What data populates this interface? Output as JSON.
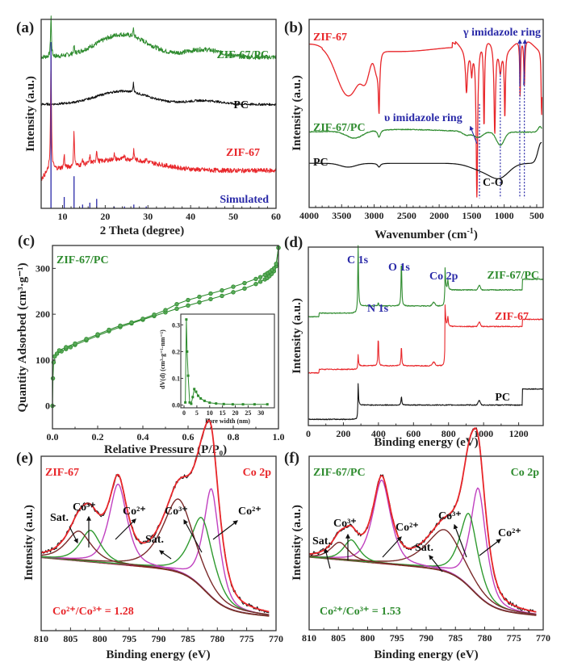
{
  "colors": {
    "green": "#2e8b2e",
    "red": "#e8262a",
    "black": "#111111",
    "blue": "#2a2aa8",
    "magenta": "#c040c0",
    "brown": "#7a2a2a",
    "fitgreen": "#2f9a2f",
    "darkred": "#8b1a1a"
  },
  "chart_data": [
    {
      "panel": "(a)",
      "type": "line",
      "xlabel": "2 Theta (degree)",
      "ylabel": "Intensity (a.u.)",
      "xlim": [
        5,
        60
      ],
      "xticks": [
        10,
        20,
        30,
        40,
        50,
        60
      ],
      "series": [
        {
          "name": "ZIF-67/PC",
          "color": "green",
          "baseline": 0.8,
          "broad": [
            {
              "x": 24,
              "h": 0.12,
              "w": 6
            },
            {
              "x": 43,
              "h": 0.04,
              "w": 4
            }
          ],
          "peaks": [
            {
              "x": 7.3,
              "h": 0.22
            },
            {
              "x": 12.7,
              "h": 0.04
            },
            {
              "x": 26.6,
              "h": 0.04
            }
          ],
          "noise": 0.012
        },
        {
          "name": "PC",
          "color": "black",
          "baseline": 0.55,
          "broad": [
            {
              "x": 24,
              "h": 0.07,
              "w": 6
            },
            {
              "x": 43,
              "h": 0.02,
              "w": 4
            }
          ],
          "peaks": [
            {
              "x": 26.6,
              "h": 0.05
            }
          ],
          "noise": 0.006
        },
        {
          "name": "ZIF-67",
          "color": "red",
          "baseline": 0.2,
          "broad": [
            {
              "x": 24,
              "h": 0.06,
              "w": 8
            }
          ],
          "peaks": [
            {
              "x": 7.3,
              "h": 0.62
            },
            {
              "x": 10.4,
              "h": 0.07
            },
            {
              "x": 12.7,
              "h": 0.18
            },
            {
              "x": 14.7,
              "h": 0.03
            },
            {
              "x": 16.4,
              "h": 0.04
            },
            {
              "x": 18.0,
              "h": 0.07
            },
            {
              "x": 22.1,
              "h": 0.03
            },
            {
              "x": 24.5,
              "h": 0.03
            },
            {
              "x": 26.7,
              "h": 0.05
            },
            {
              "x": 29.6,
              "h": 0.02
            }
          ],
          "noise": 0.012
        },
        {
          "name": "Simulated",
          "color": "blue",
          "type": "sticks",
          "sticks": [
            {
              "x": 7.3,
              "h": 0.88
            },
            {
              "x": 10.4,
              "h": 0.06
            },
            {
              "x": 12.7,
              "h": 0.17
            },
            {
              "x": 14.7,
              "h": 0.02
            },
            {
              "x": 16.4,
              "h": 0.03
            },
            {
              "x": 18.0,
              "h": 0.05
            },
            {
              "x": 22.1,
              "h": 0.01
            },
            {
              "x": 24.5,
              "h": 0.01
            },
            {
              "x": 26.7,
              "h": 0.02
            },
            {
              "x": 29.6,
              "h": 0.01
            }
          ]
        }
      ],
      "labels": [
        {
          "text": "ZIF-67/PC",
          "color": "green"
        },
        {
          "text": "PC",
          "color": "black"
        },
        {
          "text": "ZIF-67",
          "color": "red"
        },
        {
          "text": "Simulated",
          "color": "blue"
        }
      ]
    },
    {
      "panel": "(b)",
      "type": "line",
      "xlabel": "Wavenumber (cm⁻¹)",
      "ylabel": "Intensity (a.u.)",
      "xlim": [
        4000,
        400
      ],
      "xticks": [
        4000,
        3500,
        3000,
        2500,
        2000,
        1500,
        1000,
        500
      ],
      "series": [
        {
          "name": "ZIF-67",
          "color": "red"
        },
        {
          "name": "ZIF-67/PC",
          "color": "green"
        },
        {
          "name": "PC",
          "color": "black"
        }
      ],
      "annotations": [
        {
          "text": "γ imidazole ring",
          "color": "blue",
          "x": [
            760,
            690
          ]
        },
        {
          "text": "υ imidazole ring",
          "color": "blue",
          "x": [
            1380
          ]
        },
        {
          "text": "C-O",
          "color": "black",
          "x": [
            1060
          ]
        }
      ]
    },
    {
      "panel": "(c)",
      "type": "line",
      "xlabel": "Relative Pressure (P/P₀)",
      "ylabel": "Quantity Adsorbed (cm³·g⁻¹)",
      "xlim": [
        0,
        1.0
      ],
      "ylim": [
        -50,
        350
      ],
      "xticks": [
        0.0,
        0.2,
        0.4,
        0.6,
        0.8,
        1.0
      ],
      "yticks": [
        0,
        100,
        200,
        300
      ],
      "legend": "ZIF-67/PC",
      "series": [
        {
          "name": "adsorption",
          "x": [
            0.0,
            0.002,
            0.005,
            0.01,
            0.02,
            0.04,
            0.06,
            0.08,
            0.1,
            0.15,
            0.2,
            0.25,
            0.3,
            0.35,
            0.4,
            0.45,
            0.5,
            0.55,
            0.6,
            0.65,
            0.7,
            0.75,
            0.8,
            0.85,
            0.9,
            0.92,
            0.94,
            0.95,
            0.96,
            0.97,
            0.98,
            0.99,
            1.0
          ],
          "y": [
            0,
            60,
            95,
            108,
            114,
            119,
            124,
            128,
            133,
            143,
            153,
            163,
            172,
            180,
            188,
            196,
            204,
            212,
            219,
            226,
            233,
            240,
            248,
            256,
            266,
            271,
            276,
            279,
            283,
            288,
            294,
            305,
            345
          ]
        },
        {
          "name": "desorption",
          "x": [
            1.0,
            0.99,
            0.98,
            0.97,
            0.96,
            0.95,
            0.94,
            0.92,
            0.9,
            0.85,
            0.8,
            0.75,
            0.7,
            0.65,
            0.6,
            0.55,
            0.5,
            0.45,
            0.4,
            0.35,
            0.3,
            0.25,
            0.2,
            0.15,
            0.1,
            0.06,
            0.03
          ],
          "y": [
            345,
            310,
            300,
            296,
            292,
            289,
            286,
            281,
            277,
            268,
            260,
            252,
            245,
            238,
            231,
            222,
            209,
            199,
            190,
            182,
            175,
            166,
            156,
            146,
            136,
            128,
            121
          ]
        }
      ],
      "inset": {
        "xlabel": "Pore width (nm)",
        "ylabel": "dV(d) (cm³·g⁻¹·nm⁻¹)",
        "xlim": [
          0,
          34
        ],
        "ylim": [
          -0.01,
          0.34
        ],
        "xticks": [
          0,
          5,
          10,
          15,
          20,
          25,
          30
        ],
        "yticks": [
          0.0,
          0.1,
          0.2,
          0.3
        ],
        "x": [
          0.5,
          0.9,
          1.2,
          1.6,
          2.2,
          2.8,
          3.4,
          4.0,
          4.7,
          5.5,
          6.5,
          8,
          10,
          12.5,
          15.5,
          19,
          23,
          27.5,
          32.5
        ],
        "y": [
          0.01,
          0.32,
          0.2,
          0.11,
          0.01,
          0.005,
          0.03,
          0.06,
          0.05,
          0.035,
          0.025,
          0.016,
          0.009,
          0.006,
          0.004,
          0.003,
          0.003,
          0.003,
          0.003
        ]
      }
    },
    {
      "panel": "(d)",
      "type": "line",
      "xlabel": "Binding energy (eV)",
      "ylabel": "Intensity (a.u.)",
      "xlim": [
        0,
        1340
      ],
      "xticks": [
        0,
        200,
        400,
        600,
        800,
        1000,
        1200
      ],
      "series": [
        {
          "name": "ZIF-67/PC",
          "color": "green"
        },
        {
          "name": "ZIF-67",
          "color": "red"
        },
        {
          "name": "PC",
          "color": "black"
        }
      ],
      "annotations": [
        {
          "text": "C 1s",
          "x": 284
        },
        {
          "text": "N 1s",
          "x": 399
        },
        {
          "text": "O 1s",
          "x": 531
        },
        {
          "text": "Co 2p",
          "x": 780
        }
      ]
    },
    {
      "panel": "(e)",
      "type": "line",
      "title_left": "ZIF-67",
      "title_right": "Co 2p",
      "xlabel": "Binding energy (eV)",
      "ylabel": "Intensity (a.u.)",
      "xlim": [
        810,
        770
      ],
      "xticks": [
        810,
        805,
        800,
        795,
        790,
        785,
        780,
        775,
        770
      ],
      "ratio_text": "Co²⁺/Co³⁺ = 1.28",
      "peaks": [
        {
          "name": "Co2+ (2p3/2)",
          "x": 781.0,
          "h": 0.62,
          "w": 1.4,
          "color": "magenta"
        },
        {
          "name": "Co3+ (2p3/2)",
          "x": 782.6,
          "h": 0.4,
          "w": 2.0,
          "color": "fitgreen"
        },
        {
          "name": "Sat.",
          "x": 786.6,
          "h": 0.42,
          "w": 2.8,
          "color": "brown"
        },
        {
          "name": "Co2+ (2p1/2)",
          "x": 796.9,
          "h": 0.46,
          "w": 1.6,
          "color": "magenta"
        },
        {
          "name": "Co3+ (2p1/2)",
          "x": 801.6,
          "h": 0.18,
          "w": 1.8,
          "color": "fitgreen"
        },
        {
          "name": "Sat.",
          "x": 803.6,
          "h": 0.17,
          "w": 2.2,
          "color": "brown"
        }
      ],
      "labels": [
        "Sat.",
        "Co³⁺",
        "Co²⁺",
        "Sat.",
        "Co³⁺",
        "Co²⁺"
      ]
    },
    {
      "panel": "(f)",
      "type": "line",
      "title_left": "ZIF-67/PC",
      "title_right": "Co 2p",
      "xlabel": "Binding energy (eV)",
      "ylabel": "Intensity (a.u.)",
      "xlim": [
        810,
        770
      ],
      "xticks": [
        810,
        805,
        800,
        795,
        790,
        785,
        780,
        775,
        770
      ],
      "ratio_text": "Co²⁺/Co³⁺ = 1.53",
      "peaks": [
        {
          "name": "Co2+ (2p3/2)",
          "x": 781.1,
          "h": 0.62,
          "w": 1.4,
          "color": "magenta"
        },
        {
          "name": "Co3+ (2p3/2)",
          "x": 782.7,
          "h": 0.42,
          "w": 1.6,
          "color": "fitgreen"
        },
        {
          "name": "Sat.",
          "x": 786.8,
          "h": 0.24,
          "w": 3.2,
          "color": "brown"
        },
        {
          "name": "Co2+ (2p1/2)",
          "x": 797.6,
          "h": 0.48,
          "w": 1.6,
          "color": "magenta"
        },
        {
          "name": "Co3+ (2p1/2)",
          "x": 802.8,
          "h": 0.12,
          "w": 1.4,
          "color": "fitgreen"
        },
        {
          "name": "Sat.",
          "x": 804.8,
          "h": 0.1,
          "w": 1.6,
          "color": "brown"
        }
      ],
      "labels": [
        "Sat.",
        "Co³⁺",
        "Co²⁺",
        "Sat.",
        "Co³⁺",
        "Co²⁺"
      ]
    }
  ],
  "text": {
    "a": {
      "label": "(a)",
      "ylabel": "Intensity (a.u.)",
      "xlabel": "2 Theta (degree)",
      "s1": "ZIF-67/PC",
      "s2": "PC",
      "s3": "ZIF-67",
      "s4": "Simulated"
    },
    "b": {
      "label": "(b)",
      "ylabel": "Intensity (a.u.)",
      "xlabel": "Wavenumber (cm",
      "xlabel_sup": "-1",
      "xlabel_end": ")",
      "s1": "ZIF-67",
      "s2": "ZIF-67/PC",
      "s3": "PC",
      "gamma": "γ imidazole ring",
      "upsilon": "υ imidazole ring",
      "co": "C-O"
    },
    "c": {
      "label": "(c)",
      "ylabel": "Quantity Adsorbed (cm³·g⁻¹)",
      "xlabel": "Relative Pressure (P/P₀)",
      "legend": "ZIF-67/PC",
      "inset_xlabel": "Pore width (nm)",
      "inset_ylabel": "dV(d) (cm³·g⁻¹·nm⁻¹)"
    },
    "d": {
      "label": "(d)",
      "ylabel": "Intensity (a.u.)",
      "xlabel": "Binding energy (eV)",
      "c1s": "C 1s",
      "n1s": "N 1s",
      "o1s": "O 1s",
      "co2p": "Co 2p",
      "s1": "ZIF-67/PC",
      "s2": "ZIF-67",
      "s3": "PC"
    },
    "e": {
      "label": "(e)",
      "ylabel": "Intensity (a.u.)",
      "xlabel": "Binding energy (eV)",
      "title_left": "ZIF-67",
      "title_right": "Co 2p",
      "ratio": "Co²⁺/Co³⁺ = 1.28",
      "sat": "Sat.",
      "co3": "Co³⁺",
      "co2": "Co²⁺"
    },
    "f": {
      "label": "(f)",
      "ylabel": "Intensity (a.u.)",
      "xlabel": "Binding energy (eV)",
      "title_left": "ZIF-67/PC",
      "title_right": "Co 2p",
      "ratio": "Co²⁺/Co³⁺ = 1.53",
      "sat": "Sat.",
      "co3": "Co³⁺",
      "co2": "Co²⁺"
    }
  }
}
